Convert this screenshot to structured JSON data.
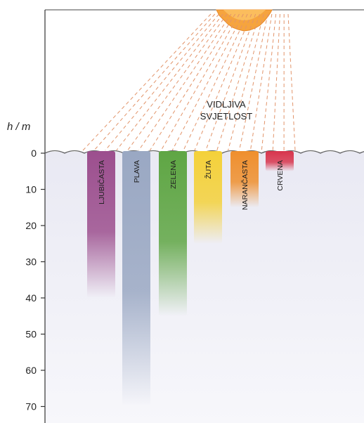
{
  "axis": {
    "label": "h / m",
    "ticks": [
      0,
      10,
      20,
      30,
      40,
      50,
      60,
      70
    ]
  },
  "light_label": {
    "line1": "VIDLJIVA",
    "line2": "SVJETLOST"
  },
  "colors": {
    "sun": "#f4a640",
    "rays": "#e2946a",
    "water": "#eeeef5"
  },
  "bands": [
    {
      "label": "LJUBIČASTA",
      "color": "#9c4f8e",
      "depth_m": 40
    },
    {
      "label": "PLAVA",
      "color": "#9aa8c3",
      "depth_m": 70
    },
    {
      "label": "ZELENA",
      "color": "#5fa644",
      "depth_m": 45
    },
    {
      "label": "ŽUTA",
      "color": "#f4d13a",
      "depth_m": 25
    },
    {
      "label": "NARANČASTA",
      "color": "#ef8f2d",
      "depth_m": 15
    },
    {
      "label": "CRVENA",
      "color": "#d8354d",
      "depth_m": 5
    }
  ]
}
